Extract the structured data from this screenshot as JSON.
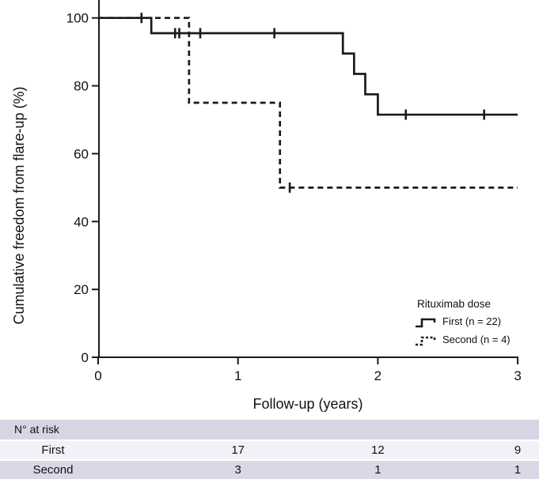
{
  "chart_data": {
    "type": "line",
    "variant": "kaplan-meier-step",
    "title": "",
    "xlabel": "Follow-up (years)",
    "ylabel": "Cumulative freedom from flare-up (%)",
    "xlim": [
      0,
      3
    ],
    "ylim": [
      0,
      100
    ],
    "xticks": [
      0,
      1,
      2,
      3
    ],
    "yticks": [
      0,
      20,
      40,
      60,
      80,
      100
    ],
    "grid": false,
    "line_color": "#1a1a1a",
    "legend": {
      "title": "Rituximab dose",
      "position": "lower-right",
      "entries": [
        {
          "label": "First (n = 22)",
          "line_style": "solid"
        },
        {
          "label": "Second (n = 4)",
          "line_style": "dashed"
        }
      ]
    },
    "series": [
      {
        "name": "First (n = 22)",
        "line_style": "solid",
        "steps": [
          [
            0,
            100
          ],
          [
            0.38,
            95.5
          ],
          [
            1.75,
            89.5
          ],
          [
            1.83,
            83.5
          ],
          [
            1.91,
            77.5
          ],
          [
            2.0,
            71.5
          ]
        ],
        "end_x": 3.0,
        "censor_marks": [
          [
            0.31,
            100
          ],
          [
            0.55,
            95.5
          ],
          [
            0.58,
            95.5
          ],
          [
            0.73,
            95.5
          ],
          [
            1.26,
            95.5
          ],
          [
            2.2,
            71.5
          ],
          [
            2.76,
            71.5
          ]
        ]
      },
      {
        "name": "Second (n = 4)",
        "line_style": "dashed",
        "steps": [
          [
            0,
            100
          ],
          [
            0.65,
            75
          ],
          [
            1.3,
            50
          ]
        ],
        "end_x": 3.0,
        "censor_marks": [
          [
            1.37,
            50
          ]
        ]
      }
    ]
  },
  "risk_table": {
    "header": "N° at risk",
    "column_times": [
      1,
      2,
      3
    ],
    "rows": [
      {
        "label": "First",
        "values": [
          "17",
          "12",
          "9"
        ]
      },
      {
        "label": "Second",
        "values": [
          "3",
          "1",
          "1"
        ]
      }
    ],
    "colors": {
      "header_bg": "#d7d4e3",
      "row_first_bg": "#f2f1f7",
      "row_second_bg": "#dad8e6"
    }
  }
}
